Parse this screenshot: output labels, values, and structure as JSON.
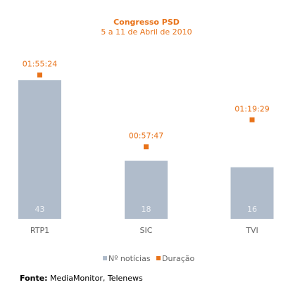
{
  "chart_data": {
    "type": "bar",
    "title": "Congresso PSD",
    "subtitle": "5 a 11 de Abril de 2010",
    "categories": [
      "RTP1",
      "SIC",
      "TVI"
    ],
    "series": [
      {
        "name": "Nº notícias",
        "color": "#b0bccb",
        "values": [
          43,
          18,
          16
        ]
      },
      {
        "name": "Duração",
        "color": "#e8731a",
        "axis": "y2",
        "type": "marker",
        "values": [
          6924,
          3467,
          4769
        ],
        "value_labels": [
          "01:55:24",
          "00:57:47",
          "01:19:29"
        ]
      }
    ],
    "ylim": [
      0,
      50
    ],
    "y2lim": [
      0,
      7760
    ],
    "legend": "bottom",
    "source_label": "Fonte:",
    "source": "MediaMonitor, Telenews"
  }
}
